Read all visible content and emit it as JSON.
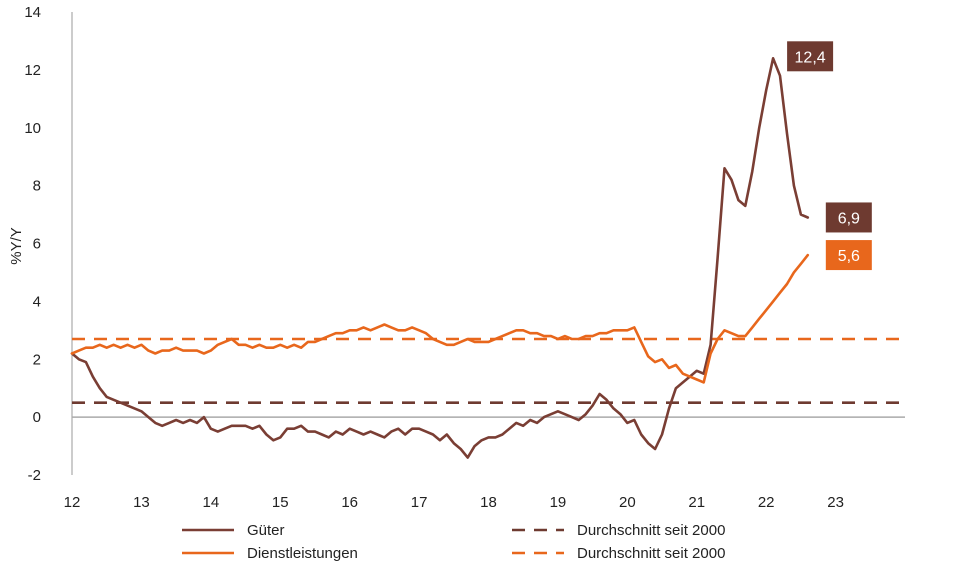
{
  "chart_data": {
    "type": "line",
    "title": "",
    "xlabel": "",
    "ylabel": "%Y/Y",
    "xlim": [
      12,
      24
    ],
    "ylim": [
      -2,
      14
    ],
    "x_ticks": [
      "12",
      "13",
      "14",
      "15",
      "16",
      "17",
      "18",
      "19",
      "20",
      "21",
      "22",
      "23"
    ],
    "y_ticks": [
      "-2",
      "0",
      "2",
      "4",
      "6",
      "8",
      "10",
      "12",
      "14"
    ],
    "grid": false,
    "legend_position": "bottom",
    "colors": {
      "goods": "#7a3e34",
      "services": "#e8671c",
      "goods_label_bg": "#6e3a30",
      "services_label_bg": "#e8671c",
      "zero_line": "#aaaaaa",
      "axis": "#999999"
    },
    "series": [
      {
        "name": "Güter",
        "color": "#7a3e34",
        "style": "solid",
        "points": [
          [
            12.0,
            2.2
          ],
          [
            12.1,
            2.0
          ],
          [
            12.2,
            1.9
          ],
          [
            12.3,
            1.4
          ],
          [
            12.4,
            1.0
          ],
          [
            12.5,
            0.7
          ],
          [
            12.6,
            0.6
          ],
          [
            12.7,
            0.5
          ],
          [
            12.8,
            0.4
          ],
          [
            12.9,
            0.3
          ],
          [
            13.0,
            0.2
          ],
          [
            13.1,
            0.0
          ],
          [
            13.2,
            -0.2
          ],
          [
            13.3,
            -0.3
          ],
          [
            13.4,
            -0.2
          ],
          [
            13.5,
            -0.1
          ],
          [
            13.6,
            -0.2
          ],
          [
            13.7,
            -0.1
          ],
          [
            13.8,
            -0.2
          ],
          [
            13.9,
            0.0
          ],
          [
            14.0,
            -0.4
          ],
          [
            14.1,
            -0.5
          ],
          [
            14.2,
            -0.4
          ],
          [
            14.3,
            -0.3
          ],
          [
            14.4,
            -0.3
          ],
          [
            14.5,
            -0.3
          ],
          [
            14.6,
            -0.4
          ],
          [
            14.7,
            -0.3
          ],
          [
            14.8,
            -0.6
          ],
          [
            14.9,
            -0.8
          ],
          [
            15.0,
            -0.7
          ],
          [
            15.1,
            -0.4
          ],
          [
            15.2,
            -0.4
          ],
          [
            15.3,
            -0.3
          ],
          [
            15.4,
            -0.5
          ],
          [
            15.5,
            -0.5
          ],
          [
            15.6,
            -0.6
          ],
          [
            15.7,
            -0.7
          ],
          [
            15.8,
            -0.5
          ],
          [
            15.9,
            -0.6
          ],
          [
            16.0,
            -0.4
          ],
          [
            16.1,
            -0.5
          ],
          [
            16.2,
            -0.6
          ],
          [
            16.3,
            -0.5
          ],
          [
            16.4,
            -0.6
          ],
          [
            16.5,
            -0.7
          ],
          [
            16.6,
            -0.5
          ],
          [
            16.7,
            -0.4
          ],
          [
            16.8,
            -0.6
          ],
          [
            16.9,
            -0.4
          ],
          [
            17.0,
            -0.4
          ],
          [
            17.1,
            -0.5
          ],
          [
            17.2,
            -0.6
          ],
          [
            17.3,
            -0.8
          ],
          [
            17.4,
            -0.6
          ],
          [
            17.5,
            -0.9
          ],
          [
            17.6,
            -1.1
          ],
          [
            17.7,
            -1.4
          ],
          [
            17.8,
            -1.0
          ],
          [
            17.9,
            -0.8
          ],
          [
            18.0,
            -0.7
          ],
          [
            18.1,
            -0.7
          ],
          [
            18.2,
            -0.6
          ],
          [
            18.3,
            -0.4
          ],
          [
            18.4,
            -0.2
          ],
          [
            18.5,
            -0.3
          ],
          [
            18.6,
            -0.1
          ],
          [
            18.7,
            -0.2
          ],
          [
            18.8,
            0.0
          ],
          [
            18.9,
            0.1
          ],
          [
            19.0,
            0.2
          ],
          [
            19.1,
            0.1
          ],
          [
            19.2,
            0.0
          ],
          [
            19.3,
            -0.1
          ],
          [
            19.4,
            0.1
          ],
          [
            19.5,
            0.4
          ],
          [
            19.6,
            0.8
          ],
          [
            19.7,
            0.6
          ],
          [
            19.8,
            0.3
          ],
          [
            19.9,
            0.1
          ],
          [
            20.0,
            -0.2
          ],
          [
            20.1,
            -0.1
          ],
          [
            20.2,
            -0.6
          ],
          [
            20.3,
            -0.9
          ],
          [
            20.4,
            -1.1
          ],
          [
            20.5,
            -0.6
          ],
          [
            20.6,
            0.3
          ],
          [
            20.7,
            1.0
          ],
          [
            20.8,
            1.2
          ],
          [
            20.9,
            1.4
          ],
          [
            21.0,
            1.6
          ],
          [
            21.1,
            1.5
          ],
          [
            21.2,
            2.5
          ],
          [
            21.3,
            5.5
          ],
          [
            21.4,
            8.6
          ],
          [
            21.5,
            8.2
          ],
          [
            21.6,
            7.5
          ],
          [
            21.7,
            7.3
          ],
          [
            21.8,
            8.5
          ],
          [
            21.9,
            10.0
          ],
          [
            22.0,
            11.3
          ],
          [
            22.1,
            12.4
          ],
          [
            22.2,
            11.8
          ],
          [
            22.3,
            9.8
          ],
          [
            22.4,
            8.0
          ],
          [
            22.5,
            7.0
          ],
          [
            22.6,
            6.9
          ]
        ]
      },
      {
        "name": "Dienstleistungen",
        "color": "#e8671c",
        "style": "solid",
        "points": [
          [
            12.0,
            2.2
          ],
          [
            12.1,
            2.3
          ],
          [
            12.2,
            2.4
          ],
          [
            12.3,
            2.4
          ],
          [
            12.4,
            2.5
          ],
          [
            12.5,
            2.4
          ],
          [
            12.6,
            2.5
          ],
          [
            12.7,
            2.4
          ],
          [
            12.8,
            2.5
          ],
          [
            12.9,
            2.4
          ],
          [
            13.0,
            2.5
          ],
          [
            13.1,
            2.3
          ],
          [
            13.2,
            2.2
          ],
          [
            13.3,
            2.3
          ],
          [
            13.4,
            2.3
          ],
          [
            13.5,
            2.4
          ],
          [
            13.6,
            2.3
          ],
          [
            13.7,
            2.3
          ],
          [
            13.8,
            2.3
          ],
          [
            13.9,
            2.2
          ],
          [
            14.0,
            2.3
          ],
          [
            14.1,
            2.5
          ],
          [
            14.2,
            2.6
          ],
          [
            14.3,
            2.7
          ],
          [
            14.4,
            2.5
          ],
          [
            14.5,
            2.5
          ],
          [
            14.6,
            2.4
          ],
          [
            14.7,
            2.5
          ],
          [
            14.8,
            2.4
          ],
          [
            14.9,
            2.4
          ],
          [
            15.0,
            2.5
          ],
          [
            15.1,
            2.4
          ],
          [
            15.2,
            2.5
          ],
          [
            15.3,
            2.4
          ],
          [
            15.4,
            2.6
          ],
          [
            15.5,
            2.6
          ],
          [
            15.6,
            2.7
          ],
          [
            15.7,
            2.8
          ],
          [
            15.8,
            2.9
          ],
          [
            15.9,
            2.9
          ],
          [
            16.0,
            3.0
          ],
          [
            16.1,
            3.0
          ],
          [
            16.2,
            3.1
          ],
          [
            16.3,
            3.0
          ],
          [
            16.4,
            3.1
          ],
          [
            16.5,
            3.2
          ],
          [
            16.6,
            3.1
          ],
          [
            16.7,
            3.0
          ],
          [
            16.8,
            3.0
          ],
          [
            16.9,
            3.1
          ],
          [
            17.0,
            3.0
          ],
          [
            17.1,
            2.9
          ],
          [
            17.2,
            2.7
          ],
          [
            17.3,
            2.6
          ],
          [
            17.4,
            2.5
          ],
          [
            17.5,
            2.5
          ],
          [
            17.6,
            2.6
          ],
          [
            17.7,
            2.7
          ],
          [
            17.8,
            2.6
          ],
          [
            17.9,
            2.6
          ],
          [
            18.0,
            2.6
          ],
          [
            18.1,
            2.7
          ],
          [
            18.2,
            2.8
          ],
          [
            18.3,
            2.9
          ],
          [
            18.4,
            3.0
          ],
          [
            18.5,
            3.0
          ],
          [
            18.6,
            2.9
          ],
          [
            18.7,
            2.9
          ],
          [
            18.8,
            2.8
          ],
          [
            18.9,
            2.8
          ],
          [
            19.0,
            2.7
          ],
          [
            19.1,
            2.8
          ],
          [
            19.2,
            2.7
          ],
          [
            19.3,
            2.7
          ],
          [
            19.4,
            2.8
          ],
          [
            19.5,
            2.8
          ],
          [
            19.6,
            2.9
          ],
          [
            19.7,
            2.9
          ],
          [
            19.8,
            3.0
          ],
          [
            19.9,
            3.0
          ],
          [
            20.0,
            3.0
          ],
          [
            20.1,
            3.1
          ],
          [
            20.2,
            2.6
          ],
          [
            20.3,
            2.1
          ],
          [
            20.4,
            1.9
          ],
          [
            20.5,
            2.0
          ],
          [
            20.6,
            1.7
          ],
          [
            20.7,
            1.8
          ],
          [
            20.8,
            1.5
          ],
          [
            20.9,
            1.4
          ],
          [
            21.0,
            1.3
          ],
          [
            21.1,
            1.2
          ],
          [
            21.2,
            2.2
          ],
          [
            21.3,
            2.7
          ],
          [
            21.4,
            3.0
          ],
          [
            21.5,
            2.9
          ],
          [
            21.6,
            2.8
          ],
          [
            21.7,
            2.8
          ],
          [
            21.8,
            3.1
          ],
          [
            21.9,
            3.4
          ],
          [
            22.0,
            3.7
          ],
          [
            22.1,
            4.0
          ],
          [
            22.2,
            4.3
          ],
          [
            22.3,
            4.6
          ],
          [
            22.4,
            5.0
          ],
          [
            22.5,
            5.3
          ],
          [
            22.6,
            5.6
          ]
        ]
      }
    ],
    "reference_lines": [
      {
        "name": "Durchschnitt seit 2000",
        "value": 0.5,
        "color": "#6e3a30",
        "style": "dashed"
      },
      {
        "name": "Durchschnitt seit 2000",
        "value": 2.7,
        "color": "#e8671c",
        "style": "dashed"
      }
    ],
    "callouts": [
      {
        "text": "12,4",
        "value": 12.4,
        "series": "Güter"
      },
      {
        "text": "6,9",
        "value": 6.9,
        "series": "Güter"
      },
      {
        "text": "5,6",
        "value": 5.6,
        "series": "Dienstleistungen"
      }
    ],
    "legend": [
      {
        "label": "Güter",
        "series_index": 0
      },
      {
        "label": "Durchschnitt seit 2000",
        "reference_index": 0
      },
      {
        "label": "Dienstleistungen",
        "series_index": 1
      },
      {
        "label": "Durchschnitt seit 2000",
        "reference_index": 1
      }
    ]
  }
}
